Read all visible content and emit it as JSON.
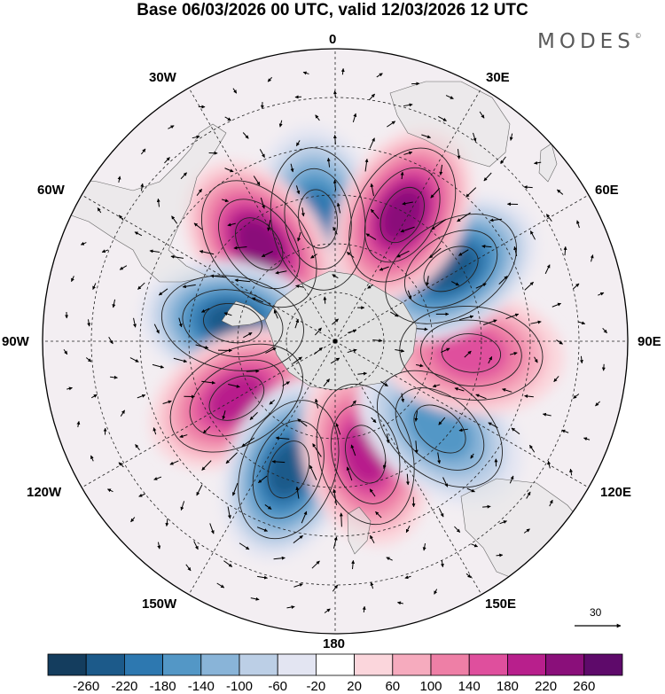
{
  "title": "Base 06/03/2026 00 UTC, valid 12/03/2026 12 UTC",
  "brand": "MODES",
  "brand_mark": "©",
  "longitude_labels": {
    "lon_0": "0",
    "lon_30e": "30E",
    "lon_60e": "60E",
    "lon_90e": "90E",
    "lon_120e": "120E",
    "lon_150e": "150E",
    "lon_180": "180",
    "lon_150w": "150W",
    "lon_120w": "120W",
    "lon_90w": "90W",
    "lon_60w": "60W",
    "lon_30w": "30W"
  },
  "reference_vector": {
    "label": "30"
  },
  "colorbar": {
    "labels": [
      "-260",
      "-220",
      "-180",
      "-140",
      "-100",
      "-60",
      "-20",
      "20",
      "60",
      "100",
      "140",
      "180",
      "220",
      "260"
    ],
    "colors": [
      "#143d5e",
      "#1c5a8a",
      "#2d78b0",
      "#5397c6",
      "#89b4d8",
      "#bccfe6",
      "#e3e5f2",
      "#ffffff",
      "#fbd6dc",
      "#f6abbe",
      "#ee7fa6",
      "#df4f9d",
      "#b81f8c",
      "#8a0f7a",
      "#5e0a6a"
    ]
  },
  "anomaly_centers": [
    {
      "id": "neg-atlantic",
      "lon": -8,
      "lat": -52,
      "value": -200
    },
    {
      "id": "pos-southatlantic",
      "lon": -38,
      "lat": -52,
      "value": 220
    },
    {
      "id": "neg-drake",
      "lon": -80,
      "lat": -58,
      "value": -250
    },
    {
      "id": "pos-southpacific-east",
      "lon": -120,
      "lat": -55,
      "value": 190
    },
    {
      "id": "neg-pacific",
      "lon": -160,
      "lat": -48,
      "value": -240
    },
    {
      "id": "pos-pacific-central",
      "lon": 165,
      "lat": -54,
      "value": 200
    },
    {
      "id": "neg-tasman",
      "lon": 130,
      "lat": -48,
      "value": -160
    },
    {
      "id": "pos-south-indian",
      "lon": 95,
      "lat": -48,
      "value": 150
    },
    {
      "id": "neg-indian",
      "lon": 58,
      "lat": -48,
      "value": -240
    },
    {
      "id": "pos-africa-south",
      "lon": 28,
      "lat": -46,
      "value": 230
    }
  ]
}
